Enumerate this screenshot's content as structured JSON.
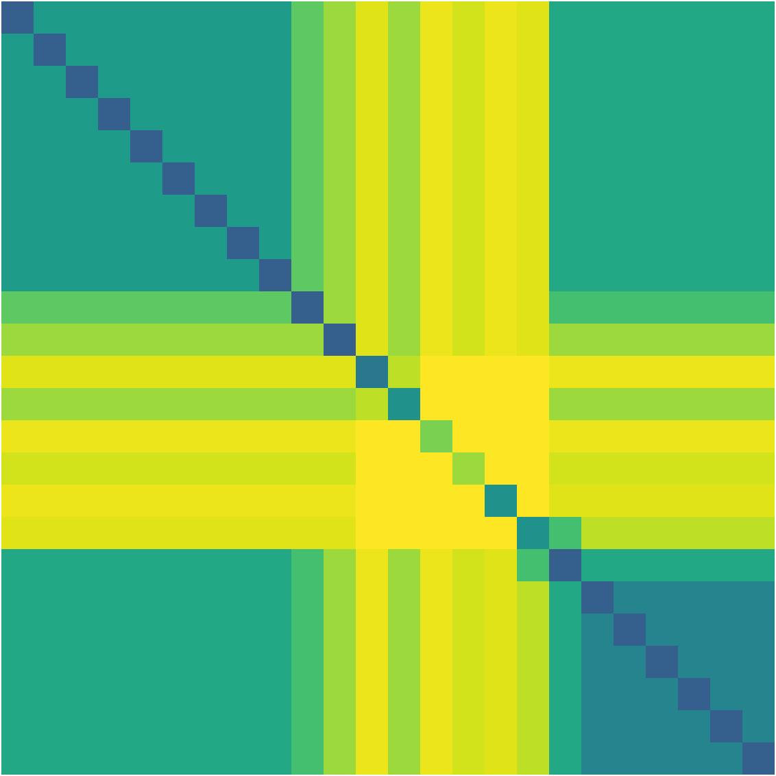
{
  "chart_data": {
    "type": "heatmap",
    "color": "viridis",
    "zlim": [
      0,
      1
    ],
    "tick_labels": false,
    "cells": [
      [
        0.3,
        0.55,
        0.55,
        0.55,
        0.55,
        0.55,
        0.55,
        0.55,
        0.55,
        0.75,
        0.85,
        0.95,
        0.85,
        0.97,
        0.93,
        0.97,
        0.95,
        0.6,
        0.6,
        0.6,
        0.6,
        0.6,
        0.6,
        0.6
      ],
      [
        0.55,
        0.3,
        0.55,
        0.55,
        0.55,
        0.55,
        0.55,
        0.55,
        0.55,
        0.75,
        0.85,
        0.95,
        0.85,
        0.97,
        0.93,
        0.97,
        0.95,
        0.6,
        0.6,
        0.6,
        0.6,
        0.6,
        0.6,
        0.6
      ],
      [
        0.55,
        0.55,
        0.3,
        0.55,
        0.55,
        0.55,
        0.55,
        0.55,
        0.55,
        0.75,
        0.85,
        0.95,
        0.85,
        0.97,
        0.93,
        0.97,
        0.95,
        0.6,
        0.6,
        0.6,
        0.6,
        0.6,
        0.6,
        0.6
      ],
      [
        0.55,
        0.55,
        0.55,
        0.3,
        0.55,
        0.55,
        0.55,
        0.55,
        0.55,
        0.75,
        0.85,
        0.95,
        0.85,
        0.97,
        0.93,
        0.97,
        0.95,
        0.6,
        0.6,
        0.6,
        0.6,
        0.6,
        0.6,
        0.6
      ],
      [
        0.55,
        0.55,
        0.55,
        0.55,
        0.3,
        0.55,
        0.55,
        0.55,
        0.55,
        0.75,
        0.85,
        0.95,
        0.85,
        0.97,
        0.93,
        0.97,
        0.95,
        0.6,
        0.6,
        0.6,
        0.6,
        0.6,
        0.6,
        0.6
      ],
      [
        0.55,
        0.55,
        0.55,
        0.55,
        0.55,
        0.3,
        0.55,
        0.55,
        0.55,
        0.75,
        0.85,
        0.95,
        0.85,
        0.97,
        0.93,
        0.97,
        0.95,
        0.6,
        0.6,
        0.6,
        0.6,
        0.6,
        0.6,
        0.6
      ],
      [
        0.55,
        0.55,
        0.55,
        0.55,
        0.55,
        0.55,
        0.3,
        0.55,
        0.55,
        0.75,
        0.85,
        0.95,
        0.85,
        0.97,
        0.93,
        0.97,
        0.95,
        0.6,
        0.6,
        0.6,
        0.6,
        0.6,
        0.6,
        0.6
      ],
      [
        0.55,
        0.55,
        0.55,
        0.55,
        0.55,
        0.55,
        0.55,
        0.3,
        0.55,
        0.75,
        0.85,
        0.95,
        0.85,
        0.97,
        0.93,
        0.97,
        0.95,
        0.6,
        0.6,
        0.6,
        0.6,
        0.6,
        0.6,
        0.6
      ],
      [
        0.55,
        0.55,
        0.55,
        0.55,
        0.55,
        0.55,
        0.55,
        0.55,
        0.3,
        0.75,
        0.85,
        0.95,
        0.85,
        0.97,
        0.93,
        0.97,
        0.95,
        0.6,
        0.6,
        0.6,
        0.6,
        0.6,
        0.6,
        0.6
      ],
      [
        0.75,
        0.75,
        0.75,
        0.75,
        0.75,
        0.75,
        0.75,
        0.75,
        0.75,
        0.3,
        0.85,
        0.95,
        0.85,
        0.97,
        0.93,
        0.97,
        0.95,
        0.7,
        0.7,
        0.7,
        0.7,
        0.7,
        0.7,
        0.7
      ],
      [
        0.85,
        0.85,
        0.85,
        0.85,
        0.85,
        0.85,
        0.85,
        0.85,
        0.85,
        0.85,
        0.3,
        0.95,
        0.85,
        0.97,
        0.93,
        0.97,
        0.95,
        0.85,
        0.85,
        0.85,
        0.85,
        0.85,
        0.85,
        0.85
      ],
      [
        0.95,
        0.95,
        0.95,
        0.95,
        0.95,
        0.95,
        0.95,
        0.95,
        0.95,
        0.95,
        0.95,
        0.4,
        0.9,
        1,
        1,
        1,
        1,
        0.97,
        0.97,
        0.97,
        0.97,
        0.97,
        0.97,
        0.97
      ],
      [
        0.85,
        0.85,
        0.85,
        0.85,
        0.85,
        0.85,
        0.85,
        0.85,
        0.85,
        0.85,
        0.85,
        0.9,
        0.5,
        1,
        1,
        1,
        1,
        0.85,
        0.85,
        0.85,
        0.85,
        0.85,
        0.85,
        0.85
      ],
      [
        0.97,
        0.97,
        0.97,
        0.97,
        0.97,
        0.97,
        0.97,
        0.97,
        0.97,
        0.97,
        0.97,
        1,
        1,
        0.8,
        1,
        1,
        1,
        0.97,
        0.97,
        0.97,
        0.97,
        0.97,
        0.97,
        0.97
      ],
      [
        0.93,
        0.93,
        0.93,
        0.93,
        0.93,
        0.93,
        0.93,
        0.93,
        0.93,
        0.93,
        0.93,
        1,
        1,
        1,
        0.85,
        1,
        1,
        0.93,
        0.93,
        0.93,
        0.93,
        0.93,
        0.93,
        0.93
      ],
      [
        0.97,
        0.97,
        0.97,
        0.97,
        0.97,
        0.97,
        0.97,
        0.97,
        0.97,
        0.97,
        0.97,
        1,
        1,
        1,
        1,
        0.5,
        1,
        0.95,
        0.95,
        0.95,
        0.95,
        0.95,
        0.95,
        0.95
      ],
      [
        0.95,
        0.95,
        0.95,
        0.95,
        0.95,
        0.95,
        0.95,
        0.95,
        0.95,
        0.95,
        0.95,
        1,
        1,
        1,
        1,
        1,
        0.5,
        0.7,
        0.9,
        0.9,
        0.9,
        0.9,
        0.9,
        0.9
      ],
      [
        0.6,
        0.6,
        0.6,
        0.6,
        0.6,
        0.6,
        0.6,
        0.6,
        0.6,
        0.7,
        0.85,
        0.97,
        0.85,
        0.97,
        0.93,
        0.95,
        0.7,
        0.3,
        0.6,
        0.6,
        0.6,
        0.6,
        0.6,
        0.6
      ],
      [
        0.6,
        0.6,
        0.6,
        0.6,
        0.6,
        0.6,
        0.6,
        0.6,
        0.6,
        0.7,
        0.85,
        0.97,
        0.85,
        0.97,
        0.93,
        0.95,
        0.9,
        0.6,
        0.3,
        0.45,
        0.45,
        0.45,
        0.45,
        0.45
      ],
      [
        0.6,
        0.6,
        0.6,
        0.6,
        0.6,
        0.6,
        0.6,
        0.6,
        0.6,
        0.7,
        0.85,
        0.97,
        0.85,
        0.97,
        0.93,
        0.95,
        0.9,
        0.6,
        0.45,
        0.3,
        0.45,
        0.45,
        0.45,
        0.45
      ],
      [
        0.6,
        0.6,
        0.6,
        0.6,
        0.6,
        0.6,
        0.6,
        0.6,
        0.6,
        0.7,
        0.85,
        0.97,
        0.85,
        0.97,
        0.93,
        0.95,
        0.9,
        0.6,
        0.45,
        0.45,
        0.3,
        0.45,
        0.45,
        0.45
      ],
      [
        0.6,
        0.6,
        0.6,
        0.6,
        0.6,
        0.6,
        0.6,
        0.6,
        0.6,
        0.7,
        0.85,
        0.97,
        0.85,
        0.97,
        0.93,
        0.95,
        0.9,
        0.6,
        0.45,
        0.45,
        0.45,
        0.3,
        0.45,
        0.45
      ],
      [
        0.6,
        0.6,
        0.6,
        0.6,
        0.6,
        0.6,
        0.6,
        0.6,
        0.6,
        0.7,
        0.85,
        0.97,
        0.85,
        0.97,
        0.93,
        0.95,
        0.9,
        0.6,
        0.45,
        0.45,
        0.45,
        0.45,
        0.3,
        0.45
      ],
      [
        0.6,
        0.6,
        0.6,
        0.6,
        0.6,
        0.6,
        0.6,
        0.6,
        0.6,
        0.7,
        0.85,
        0.97,
        0.85,
        0.97,
        0.93,
        0.95,
        0.9,
        0.6,
        0.45,
        0.45,
        0.45,
        0.45,
        0.45,
        0.3
      ]
    ]
  }
}
